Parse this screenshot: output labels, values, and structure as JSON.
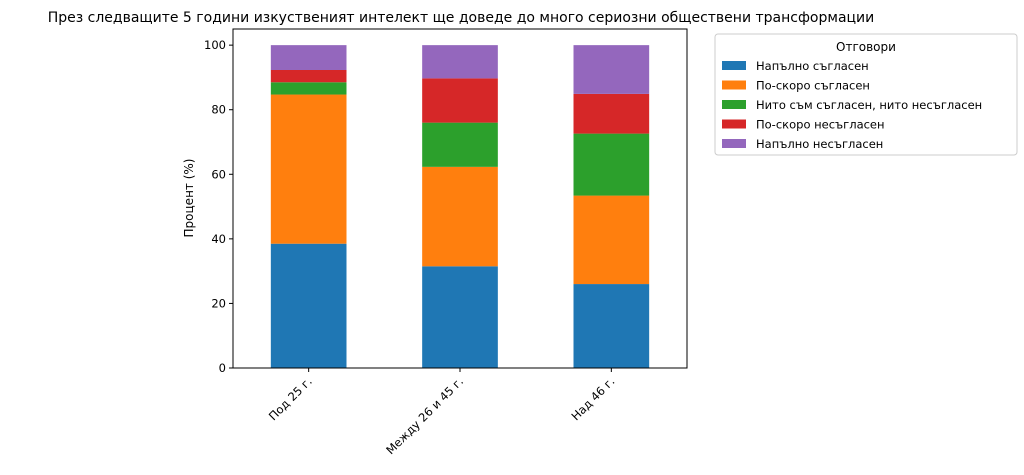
{
  "chart_data": {
    "type": "bar",
    "stacked": true,
    "title": "През следващите 5 години изкуственият интелект ще доведе до много сериозни обществени трансформации",
    "xlabel": "",
    "ylabel": "Процент (%)",
    "ylim": [
      0,
      105
    ],
    "yticks": [
      0,
      20,
      40,
      60,
      80,
      100
    ],
    "grid": false,
    "categories": [
      "Под 25 г.",
      "Между 26 и 45 г.",
      "Над 46 г."
    ],
    "legend": {
      "title": "Отговори",
      "placement": "outside-top-right"
    },
    "series": [
      {
        "name": "Напълно съгласен",
        "color": "#1f77b4",
        "values": [
          38.5,
          31.5,
          26.0
        ]
      },
      {
        "name": "По-скоро съгласен",
        "color": "#ff7f0e",
        "values": [
          46.2,
          30.8,
          27.4
        ]
      },
      {
        "name": "Нито съм съгласен, нито несъгласен",
        "color": "#2ca02c",
        "values": [
          3.8,
          13.7,
          19.2
        ]
      },
      {
        "name": "По-скоро несъгласен",
        "color": "#d62728",
        "values": [
          3.8,
          13.7,
          12.3
        ]
      },
      {
        "name": "Напълно несъгласен",
        "color": "#9467bd",
        "values": [
          7.7,
          10.3,
          15.1
        ]
      }
    ]
  }
}
